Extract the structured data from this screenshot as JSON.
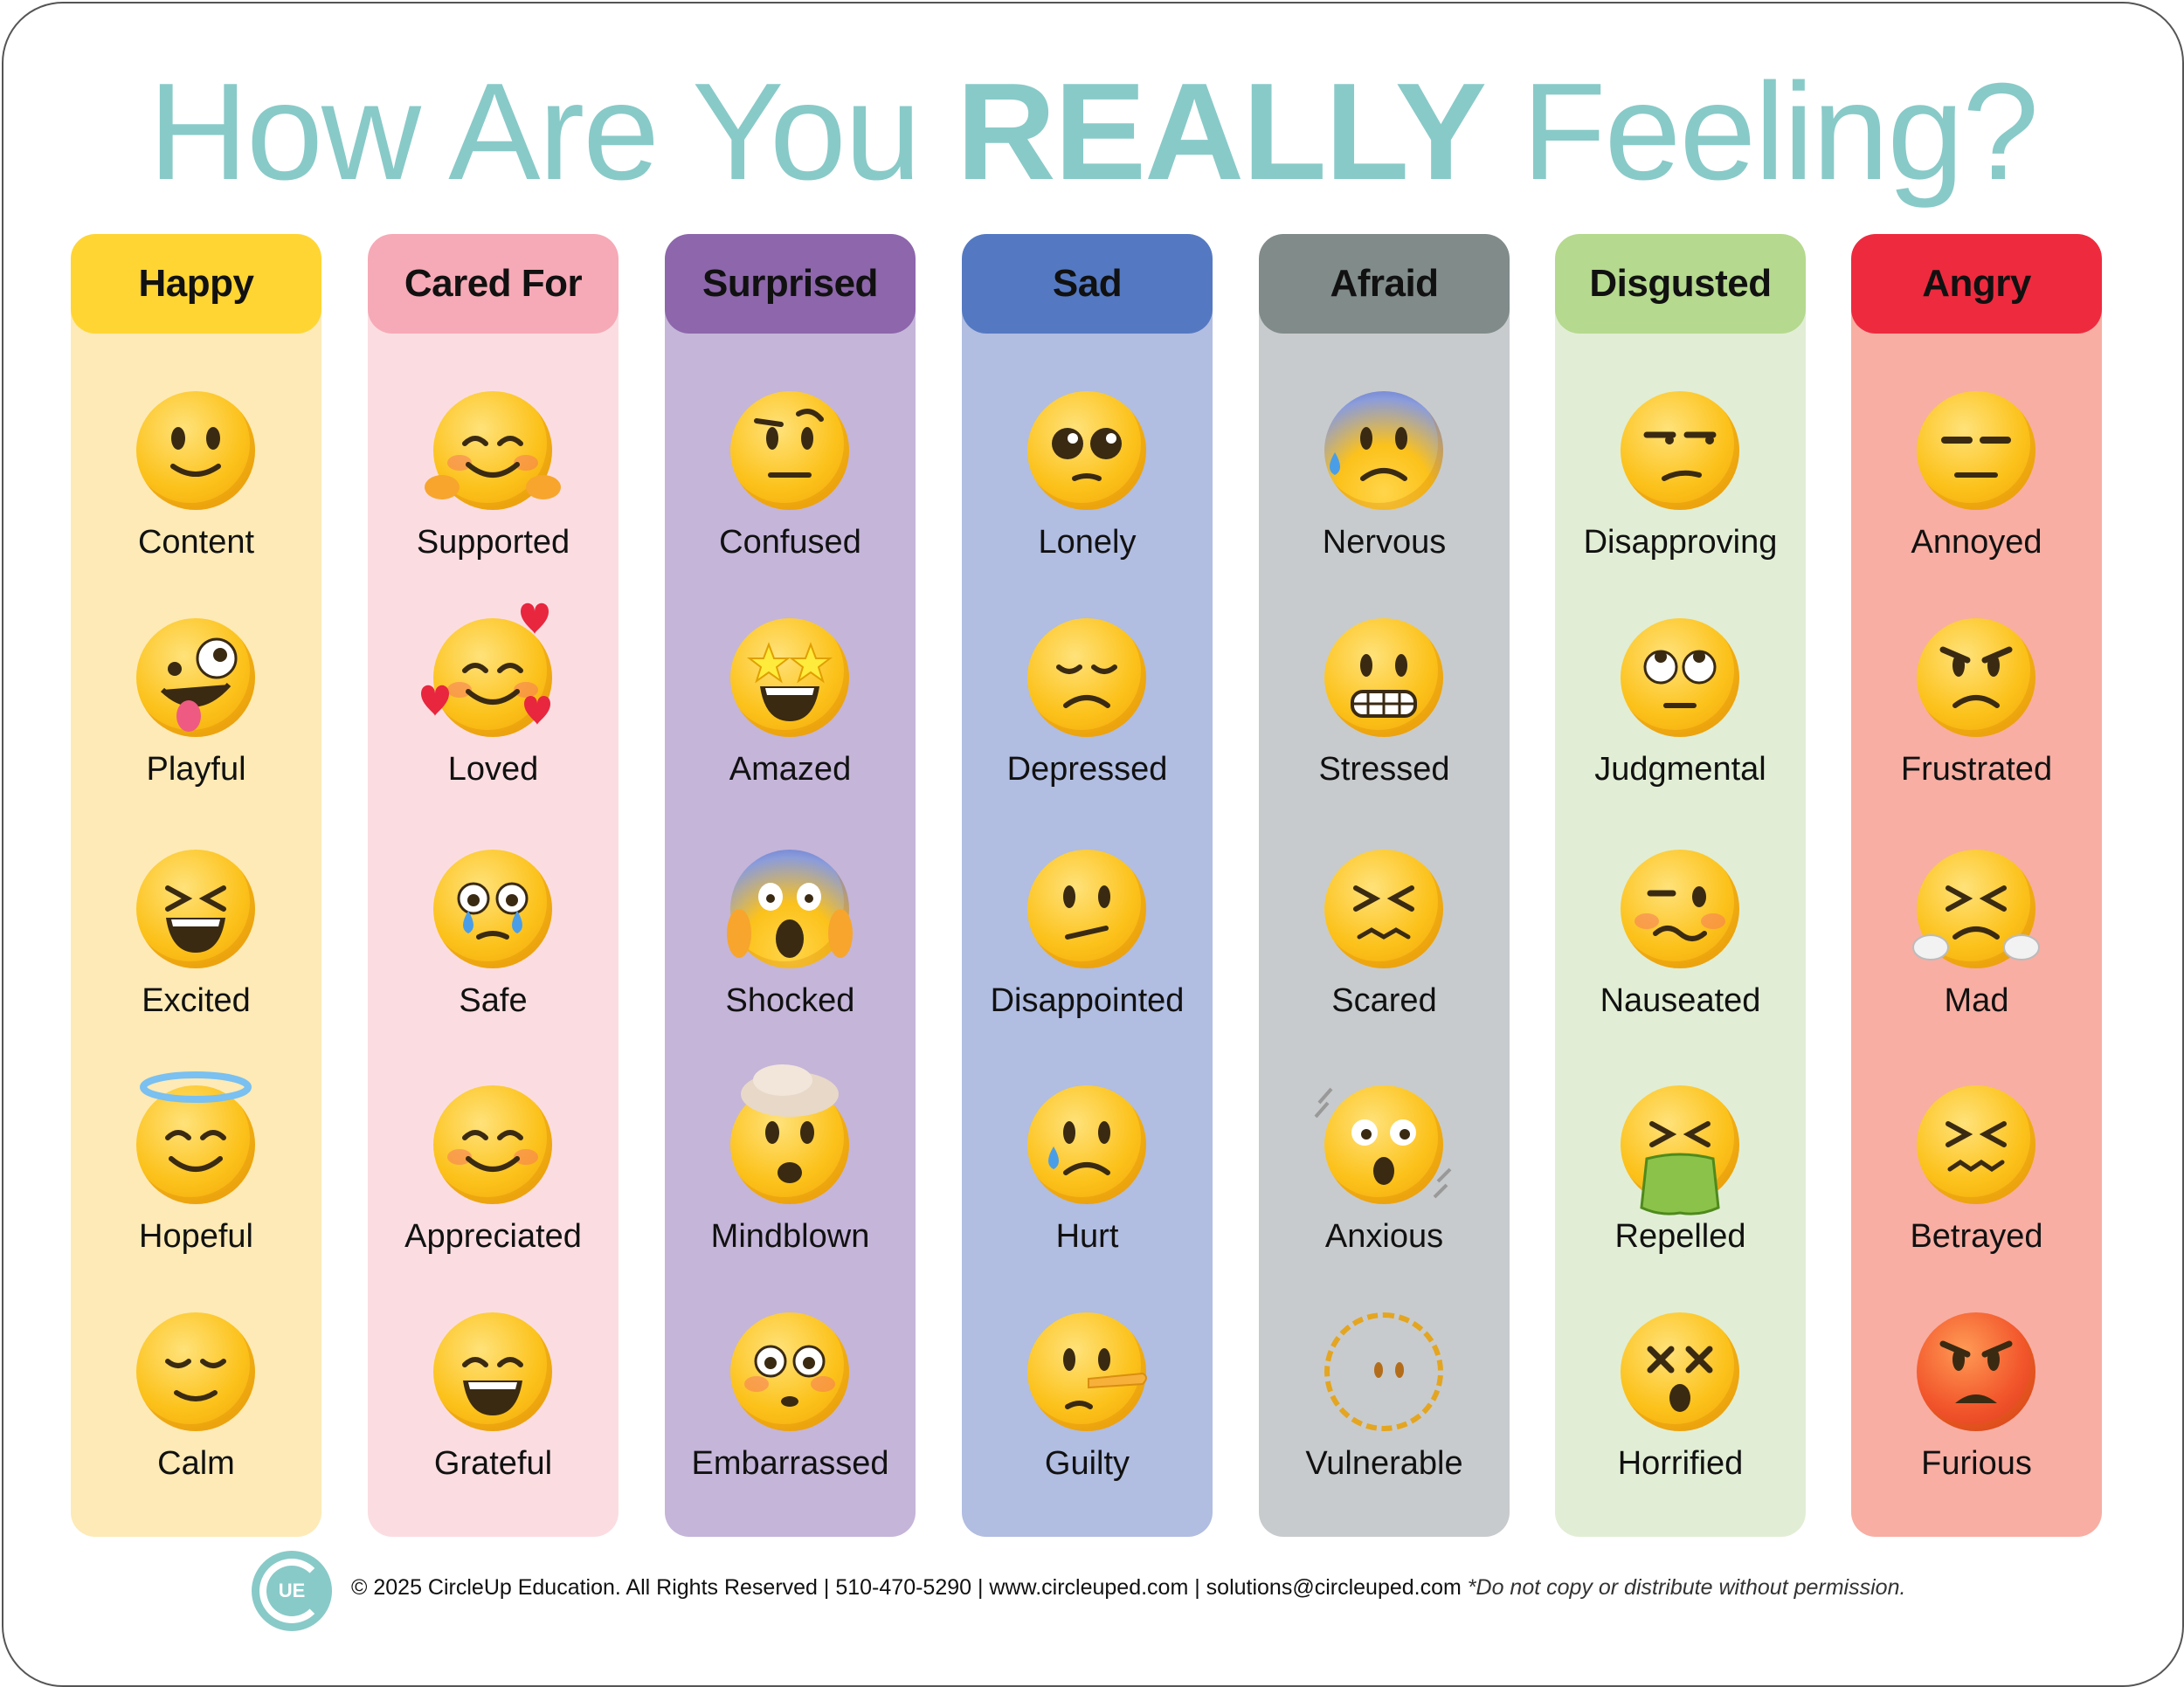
{
  "title": {
    "part1": "How Are You ",
    "emphasis": "REALLY",
    "part2": " Feeling?"
  },
  "colors": {
    "title": "#88cac8"
  },
  "columns": [
    {
      "header": "Happy",
      "header_color": "#ffd533",
      "body_color": "#fdeab6",
      "items": [
        {
          "label": "Content",
          "icon": "slightly-smiling-face-icon"
        },
        {
          "label": "Playful",
          "icon": "zany-face-icon"
        },
        {
          "label": "Excited",
          "icon": "grinning-squinting-face-icon"
        },
        {
          "label": "Hopeful",
          "icon": "smiling-face-with-halo-icon"
        },
        {
          "label": "Calm",
          "icon": "relieved-face-icon"
        }
      ]
    },
    {
      "header": "Cared For",
      "header_color": "#f6a9b6",
      "body_color": "#fbdde1",
      "items": [
        {
          "label": "Supported",
          "icon": "hugging-face-icon"
        },
        {
          "label": "Loved",
          "icon": "smiling-face-with-hearts-icon"
        },
        {
          "label": "Safe",
          "icon": "face-holding-back-tears-icon"
        },
        {
          "label": "Appreciated",
          "icon": "smiling-face-icon"
        },
        {
          "label": "Grateful",
          "icon": "beaming-face-icon"
        }
      ]
    },
    {
      "header": "Surprised",
      "header_color": "#8d66ab",
      "body_color": "#c5b5d9",
      "items": [
        {
          "label": "Confused",
          "icon": "face-with-raised-eyebrow-icon"
        },
        {
          "label": "Amazed",
          "icon": "star-struck-icon"
        },
        {
          "label": "Shocked",
          "icon": "face-screaming-in-fear-icon"
        },
        {
          "label": "Mindblown",
          "icon": "exploding-head-icon"
        },
        {
          "label": "Embarrassed",
          "icon": "flushed-face-icon"
        }
      ]
    },
    {
      "header": "Sad",
      "header_color": "#5479c2",
      "body_color": "#b1bde1",
      "items": [
        {
          "label": "Lonely",
          "icon": "pleading-face-icon"
        },
        {
          "label": "Depressed",
          "icon": "pensive-face-icon"
        },
        {
          "label": "Disappointed",
          "icon": "confused-face-icon"
        },
        {
          "label": "Hurt",
          "icon": "crying-face-icon"
        },
        {
          "label": "Guilty",
          "icon": "lying-face-icon"
        }
      ]
    },
    {
      "header": "Afraid",
      "header_color": "#808b8a",
      "body_color": "#c8cbcd",
      "items": [
        {
          "label": "Nervous",
          "icon": "anxious-face-with-sweat-icon"
        },
        {
          "label": "Stressed",
          "icon": "grimacing-face-icon"
        },
        {
          "label": "Scared",
          "icon": "confounded-face-icon"
        },
        {
          "label": "Anxious",
          "icon": "shaking-face-icon"
        },
        {
          "label": "Vulnerable",
          "icon": "dotted-line-face-icon"
        }
      ]
    },
    {
      "header": "Disgusted",
      "header_color": "#b5d98e",
      "body_color": "#e1eed5",
      "items": [
        {
          "label": "Disapproving",
          "icon": "unamused-face-icon"
        },
        {
          "label": "Judgmental",
          "icon": "face-with-rolling-eyes-icon"
        },
        {
          "label": "Nauseated",
          "icon": "woozy-face-icon"
        },
        {
          "label": "Repelled",
          "icon": "face-vomiting-icon"
        },
        {
          "label": "Horrified",
          "icon": "knocked-out-face-icon"
        }
      ]
    },
    {
      "header": "Angry",
      "header_color": "#ee2a3f",
      "body_color": "#f8aea3",
      "items": [
        {
          "label": "Annoyed",
          "icon": "expressionless-face-icon"
        },
        {
          "label": "Frustrated",
          "icon": "angry-face-icon"
        },
        {
          "label": "Mad",
          "icon": "face-with-steam-icon"
        },
        {
          "label": "Betrayed",
          "icon": "persevering-face-icon"
        },
        {
          "label": "Furious",
          "icon": "enraged-face-icon"
        }
      ]
    }
  ],
  "footer": {
    "logo_text": "UE",
    "text": "© 2025 CircleUp Education. All Rights Reserved | 510-470-5290 | www.circleuped.com | solutions@circleuped.com",
    "note": "*Do not copy or distribute without permission."
  }
}
